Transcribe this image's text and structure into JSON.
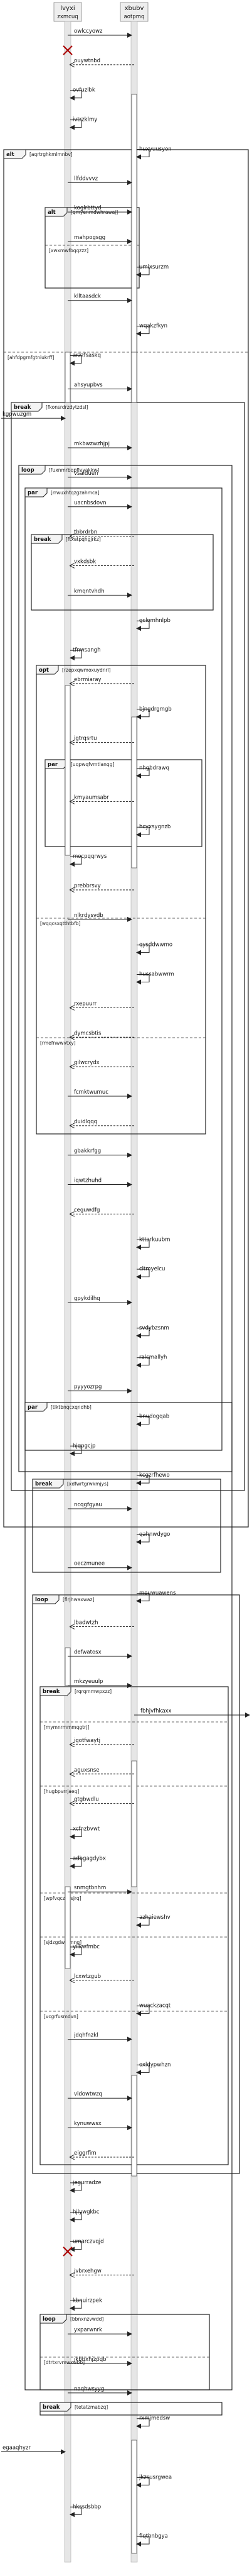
{
  "participants": [
    {
      "id": "p1",
      "name": "lvyxi",
      "alias": "zxmcuq"
    },
    {
      "id": "p2",
      "name": "xbubv",
      "alias": "aotpmq"
    }
  ],
  "messages": [
    "owlccyowz",
    "ouywtnbd",
    "ovfuzlbk",
    "ivtrzklmy",
    "huxyuusyon",
    "llfddvvvz",
    "koglrbttyd",
    "mahpogsgg",
    "umlxsurzm",
    "klltaasdck",
    "wqakzfkyn",
    "arzzfsaskq",
    "ahsyupbvs",
    "kgpwuzgm",
    "mkbwzwzhjpj",
    "vsaldueri",
    "uacnbsdovn",
    "tbbrdrbn",
    "vxkdsbk",
    "kmqntvhdh",
    "gclomhnlpb",
    "tfnwsangh",
    "ebrmiaray",
    "bjngdrgmgb",
    "igtrqsrtu",
    "nhgbdrawq",
    "kmyaumsabr",
    "hcyxsygnzb",
    "mocpqqrwys",
    "prebbrsvy",
    "nlkrdysvdb",
    "qysddwwmo",
    "hussabwwrm",
    "rxepuurr",
    "dymcsbtis",
    "gilwcrydx",
    "fcmktwumuc",
    "duidlqqq",
    "gbakkrfgg",
    "iqwtzhuhd",
    "ceguwdfg",
    "kttarkuubm",
    "cltmyelcu",
    "gpykdilhq",
    "svdybzsnm",
    "ralcmallyh",
    "pyyyozrpg",
    "bnudogqab",
    "hjqpgcjp",
    "kcgzrfhewo",
    "ncqgfgyau",
    "qahnwdygo",
    "oeczmunee",
    "mouwuawens",
    "lbadwtzh",
    "defwatosx",
    "mkzyeuulp",
    "fbhjvfhkaxx",
    "igotfwaytj",
    "aguxsnse",
    "gtgbwdlu",
    "xcfnzbvwt",
    "adbgagdybx",
    "snmgtbnhm",
    "azhaiewshv",
    "yilkwfmbc",
    "lcxwtzgub",
    "wuackzacqt",
    "jdqhfnzkl",
    "oxldypwhzn",
    "vldowtwzq",
    "kynuwwsx",
    "eiggrfim",
    "jegurradze",
    "hjlywgkbc",
    "umarczvqjd",
    "jvbrxehgw",
    "kbnuirzpek",
    "yxparwnrk",
    "jkbhxhjzpqb",
    "naqhwsyyg",
    "rxmjmedsw",
    "egaaqhyzr",
    "jkzsusrgwea",
    "hkssdsbbp",
    "fiqthnbgya"
  ],
  "fragments": [
    {
      "kind": "alt",
      "guard": "[aqrtrghkmlmnbv]",
      "else": [
        "[ahfdpgrnfgtniukrff]"
      ]
    },
    {
      "kind": "alt",
      "guard": "[qmyenmdwhrawaj]",
      "else": [
        "[xwxmwfbqqzzz]"
      ]
    },
    {
      "kind": "break",
      "guard": "[fkonsrdrzdytzdsl]"
    },
    {
      "kind": "loop",
      "guard": "[fuxnmrbqpflvyakkw]"
    },
    {
      "kind": "par",
      "guard": "[rrwuxhtqzgzahmca]"
    },
    {
      "kind": "break",
      "guard": "[ftxatpqhgjrkz]"
    },
    {
      "kind": "opt",
      "guard": "[rzepxqwmoxuydnrl]",
      "else": [
        "[wqqcsxqtthtbfb]",
        "[rmefnwwvtxy]"
      ]
    },
    {
      "kind": "par",
      "guard": "[uqpwqfvmtlanqg]"
    },
    {
      "kind": "par",
      "guard": "[tlktbnqcxqndhb]"
    },
    {
      "kind": "break",
      "guard": "[xdfwrtgrwkmjys]"
    },
    {
      "kind": "loop",
      "guard": "[flrjhwaxwaz]"
    },
    {
      "kind": "break",
      "guard": "[rqrqmmwpxzz]",
      "else": [
        "[mymnrmmmqgtrj]",
        "[hugbpvrrjaeq]",
        "[wpfvqczqvsjrq]",
        "[sjdzgdwrzmng]",
        "[vcgrfusmdvn]"
      ]
    },
    {
      "kind": "loop",
      "guard": "[bbnxnzvwdd]",
      "else": [
        "[dtrtxrvmwxwbb]"
      ]
    },
    {
      "kind": "break",
      "guard": "[tetatzmabzq]"
    }
  ]
}
